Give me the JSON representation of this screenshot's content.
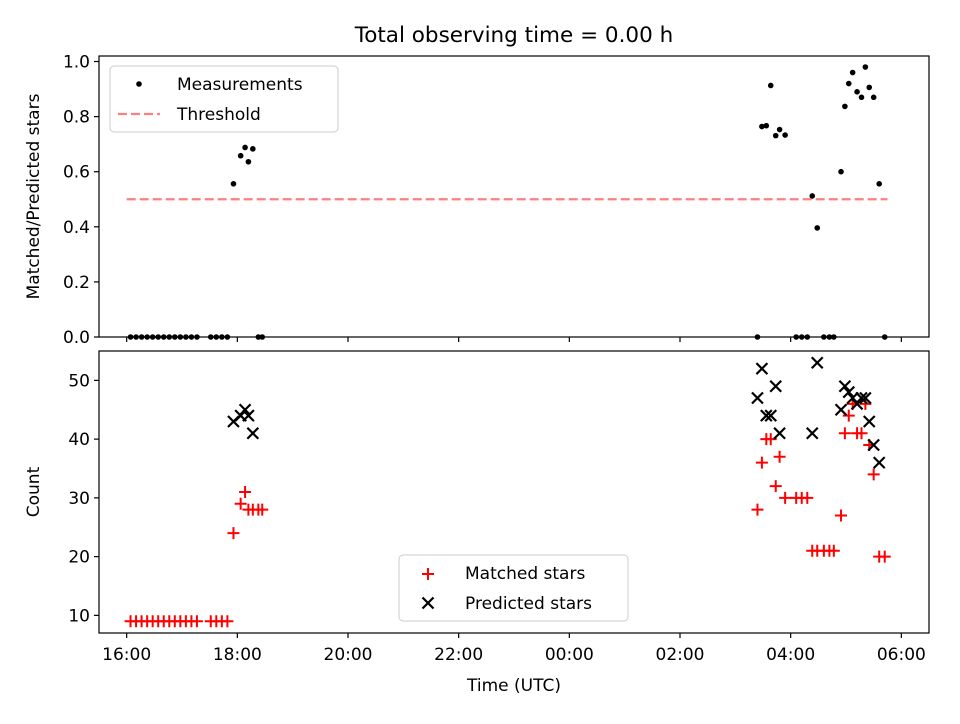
{
  "title": "Total observing time = 0.00 h",
  "chart_data": [
    {
      "type": "scatter",
      "ylabel": "Matched/Predicted stars",
      "ylim": [
        0,
        1.02
      ],
      "yticks": [
        0.0,
        0.2,
        0.4,
        0.6,
        0.8,
        1.0
      ],
      "ytick_labels": [
        "0.0",
        "0.2",
        "0.4",
        "0.6",
        "0.8",
        "1.0"
      ],
      "x_unit": "hours since 16:00 UTC",
      "legend": {
        "placement": "top-left",
        "entries": [
          "Measurements",
          "Threshold"
        ]
      },
      "threshold": {
        "name": "Threshold",
        "value": 0.5,
        "x_start": 0.0,
        "x_end": 13.75,
        "color": "#ff7f7f",
        "style": "dashed"
      },
      "series": [
        {
          "name": "Measurements",
          "color": "#000000",
          "marker": "dot",
          "points": [
            [
              0.07,
              0
            ],
            [
              0.17,
              0
            ],
            [
              0.27,
              0
            ],
            [
              0.37,
              0
            ],
            [
              0.47,
              0
            ],
            [
              0.57,
              0
            ],
            [
              0.67,
              0
            ],
            [
              0.77,
              0
            ],
            [
              0.87,
              0
            ],
            [
              0.97,
              0
            ],
            [
              1.07,
              0
            ],
            [
              1.17,
              0
            ],
            [
              1.27,
              0
            ],
            [
              1.52,
              0
            ],
            [
              1.62,
              0
            ],
            [
              1.72,
              0
            ],
            [
              1.82,
              0
            ],
            [
              1.93,
              0.556
            ],
            [
              2.06,
              0.658
            ],
            [
              2.14,
              0.688
            ],
            [
              2.2,
              0.636
            ],
            [
              2.28,
              0.683
            ],
            [
              2.38,
              0
            ],
            [
              2.45,
              0
            ],
            [
              11.4,
              0
            ],
            [
              11.48,
              0.764
            ],
            [
              11.56,
              0.767
            ],
            [
              11.64,
              0.913
            ],
            [
              11.73,
              0.731
            ],
            [
              11.8,
              0.753
            ],
            [
              11.9,
              0.733
            ],
            [
              12.1,
              0
            ],
            [
              12.2,
              0
            ],
            [
              12.3,
              0
            ],
            [
              12.39,
              0.512
            ],
            [
              12.48,
              0.396
            ],
            [
              12.6,
              0
            ],
            [
              12.7,
              0
            ],
            [
              12.78,
              0
            ],
            [
              12.91,
              0.6
            ],
            [
              12.98,
              0.837
            ],
            [
              13.05,
              0.92
            ],
            [
              13.12,
              0.96
            ],
            [
              13.2,
              0.89
            ],
            [
              13.28,
              0.87
            ],
            [
              13.35,
              0.98
            ],
            [
              13.42,
              0.906
            ],
            [
              13.5,
              0.87
            ],
            [
              13.6,
              0.556
            ],
            [
              13.7,
              0
            ]
          ]
        }
      ]
    },
    {
      "type": "scatter",
      "ylabel": "Count",
      "xlabel": "Time (UTC)",
      "ylim": [
        7,
        55
      ],
      "yticks": [
        10,
        20,
        30,
        40,
        50
      ],
      "ytick_labels": [
        "10",
        "20",
        "30",
        "40",
        "50"
      ],
      "x_unit": "hours since 16:00 UTC",
      "xlim": [
        -0.5,
        14.5
      ],
      "xticks": [
        0,
        2,
        4,
        6,
        8,
        10,
        12,
        14
      ],
      "xtick_labels": [
        "16:00",
        "18:00",
        "20:00",
        "22:00",
        "00:00",
        "02:00",
        "04:00",
        "06:00"
      ],
      "legend": {
        "placement": "bottom-center",
        "entries": [
          "Matched stars",
          "Predicted stars"
        ]
      },
      "series": [
        {
          "name": "Matched stars",
          "color": "#ff0000",
          "marker": "plus",
          "points": [
            [
              0.07,
              9
            ],
            [
              0.17,
              9
            ],
            [
              0.27,
              9
            ],
            [
              0.37,
              9
            ],
            [
              0.47,
              9
            ],
            [
              0.57,
              9
            ],
            [
              0.67,
              9
            ],
            [
              0.77,
              9
            ],
            [
              0.87,
              9
            ],
            [
              0.97,
              9
            ],
            [
              1.07,
              9
            ],
            [
              1.17,
              9
            ],
            [
              1.27,
              9
            ],
            [
              1.52,
              9
            ],
            [
              1.62,
              9
            ],
            [
              1.72,
              9
            ],
            [
              1.82,
              9
            ],
            [
              1.93,
              24
            ],
            [
              2.06,
              29
            ],
            [
              2.14,
              31
            ],
            [
              2.2,
              28
            ],
            [
              2.28,
              28
            ],
            [
              2.38,
              28
            ],
            [
              2.45,
              28
            ],
            [
              11.4,
              28
            ],
            [
              11.48,
              36
            ],
            [
              11.56,
              40
            ],
            [
              11.64,
              40
            ],
            [
              11.73,
              32
            ],
            [
              11.8,
              37
            ],
            [
              11.9,
              30
            ],
            [
              12.1,
              30
            ],
            [
              12.2,
              30
            ],
            [
              12.3,
              30
            ],
            [
              12.39,
              21
            ],
            [
              12.48,
              21
            ],
            [
              12.6,
              21
            ],
            [
              12.7,
              21
            ],
            [
              12.78,
              21
            ],
            [
              12.91,
              27
            ],
            [
              12.98,
              41
            ],
            [
              13.05,
              44
            ],
            [
              13.12,
              46
            ],
            [
              13.2,
              41
            ],
            [
              13.28,
              41
            ],
            [
              13.35,
              46
            ],
            [
              13.42,
              39
            ],
            [
              13.5,
              34
            ],
            [
              13.6,
              20
            ],
            [
              13.7,
              20
            ]
          ]
        },
        {
          "name": "Predicted stars",
          "color": "#000000",
          "marker": "x",
          "points": [
            [
              1.93,
              43
            ],
            [
              2.06,
              44
            ],
            [
              2.14,
              45
            ],
            [
              2.2,
              44
            ],
            [
              2.28,
              41
            ],
            [
              11.4,
              47
            ],
            [
              11.48,
              52
            ],
            [
              11.56,
              44
            ],
            [
              11.64,
              44
            ],
            [
              11.73,
              49
            ],
            [
              11.8,
              41
            ],
            [
              12.39,
              41
            ],
            [
              12.48,
              53
            ],
            [
              12.91,
              45
            ],
            [
              12.98,
              49
            ],
            [
              13.05,
              48
            ],
            [
              13.12,
              47
            ],
            [
              13.2,
              46
            ],
            [
              13.28,
              47
            ],
            [
              13.35,
              47
            ],
            [
              13.42,
              43
            ],
            [
              13.5,
              39
            ],
            [
              13.6,
              36
            ]
          ]
        }
      ]
    }
  ]
}
